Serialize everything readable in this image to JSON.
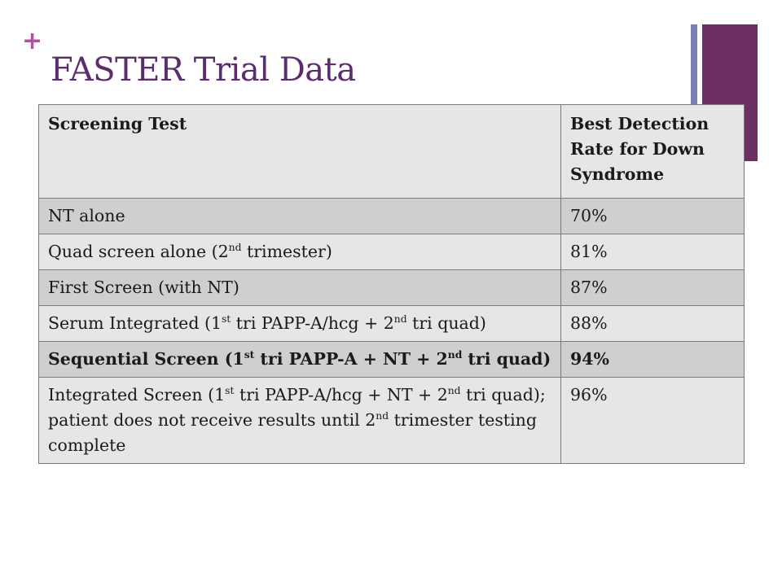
{
  "slide": {
    "plus_sign": "+",
    "title": "FASTER Trial Data"
  },
  "colors": {
    "title": "#5b2c6f",
    "plus": "#b14fa1",
    "accent_bar_thin": "#7b7fb5",
    "accent_bar_wide": "#6b2f64",
    "row_dark": "#cfcfcf",
    "row_light": "#e6e6e6"
  },
  "table": {
    "headers": {
      "col1": "Screening Test",
      "col2": "Best Detection Rate for Down Syndrome"
    },
    "rows": [
      {
        "test": "NT alone",
        "rate": "70%"
      },
      {
        "test_a": "Quad screen alone (2",
        "test_sup1": "nd",
        "test_b": " trimester)",
        "rate": "81%"
      },
      {
        "test": "First Screen (with NT)",
        "rate": "87%"
      },
      {
        "test_a": "Serum Integrated (1",
        "test_sup1": "st",
        "test_b": " tri PAPP-A/hcg + 2",
        "test_sup2": "nd",
        "test_c": " tri quad)",
        "rate": "88%"
      },
      {
        "test_a": "Sequential Screen (1",
        "test_sup1": "st",
        "test_b": " tri PAPP-A + NT + 2",
        "test_sup2": "nd",
        "test_c": " tri quad)",
        "rate": "94%"
      },
      {
        "test_a": "Integrated Screen (1",
        "test_sup1": "st",
        "test_b": " tri PAPP-A/hcg + NT + 2",
        "test_sup2": "nd",
        "test_c": " tri quad); patient does not receive results until 2",
        "test_sup3": "nd",
        "test_d": " trimester testing complete",
        "rate": "96%"
      }
    ]
  }
}
